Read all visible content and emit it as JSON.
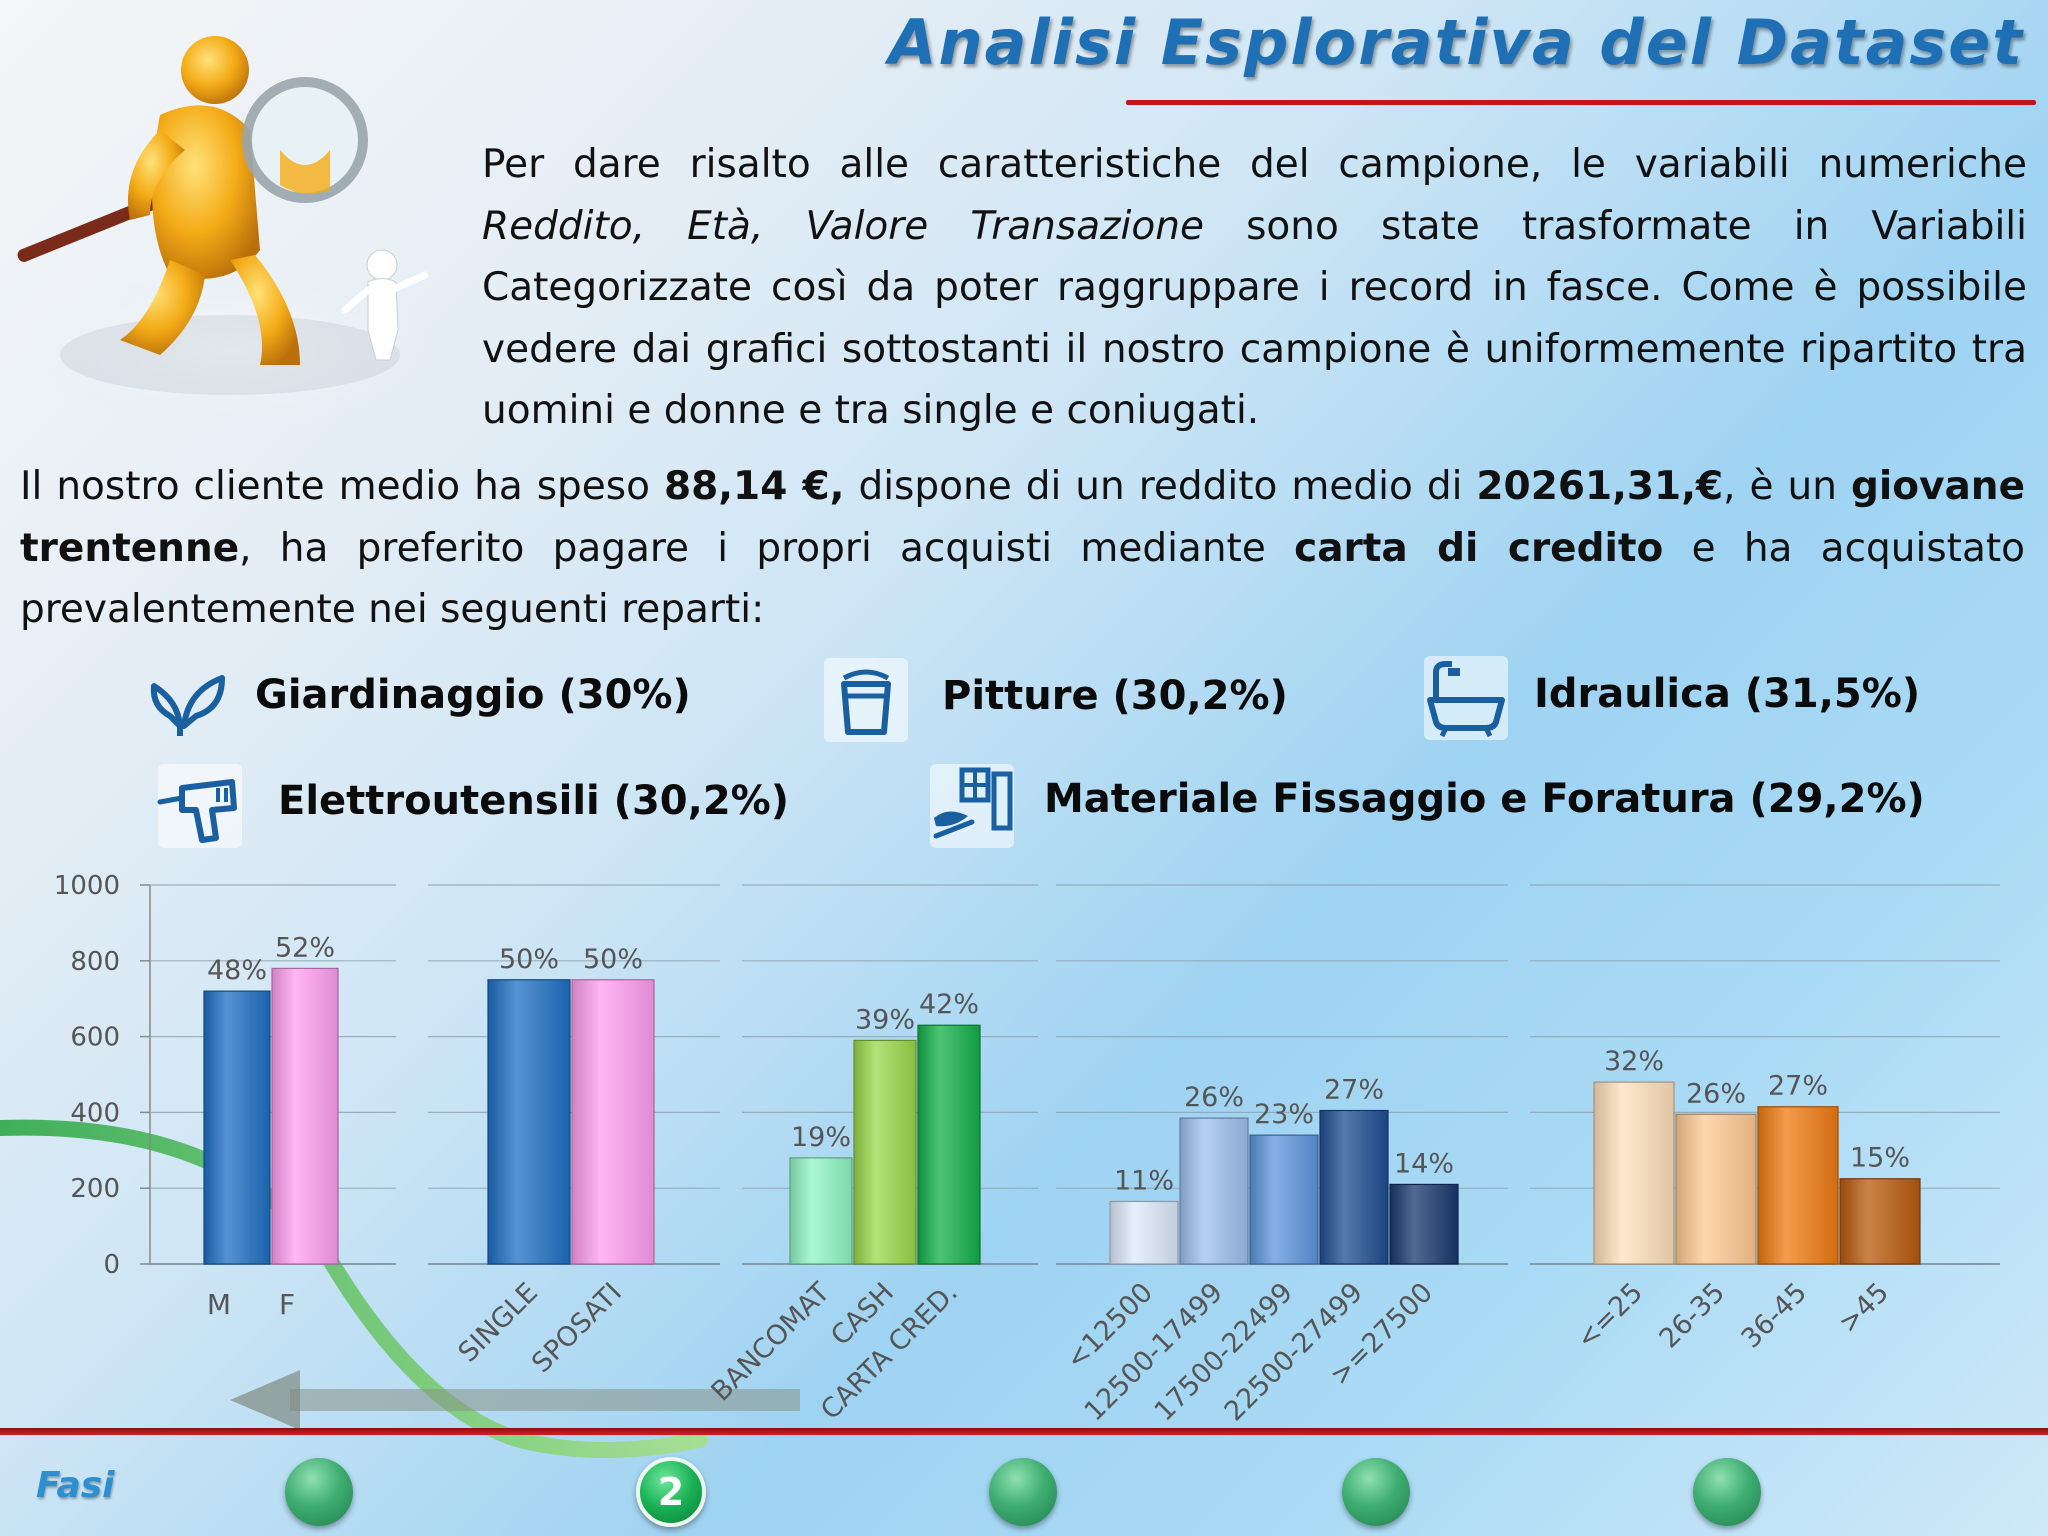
{
  "title": "Analisi Esplorativa del Dataset",
  "intro": {
    "part1": "Per dare risalto alle caratteristiche del campione, le variabili numeriche ",
    "vars": "Reddito, Età, Valore Transazione",
    "part2": " sono state trasformate in Variabili Categorizzate così da poter raggruppare i record in fasce. Come è possibile vedere dai  grafici sottostanti  il nostro campione è uniformemente ripartito tra uomini e donne e tra single e coniugati."
  },
  "summary": {
    "t1": "Il nostro cliente medio ha speso ",
    "b1": "88,14 €,",
    "t2": " dispone di un reddito medio di ",
    "b2": "20261,31,€",
    "t3": ", è un ",
    "b3": "giovane trentenne",
    "t4": ", ha preferito pagare i propri acquisti mediante ",
    "b4": "carta di credito",
    "t5": "  e ha acquistato prevalentemente nei seguenti reparti:"
  },
  "departments": [
    {
      "label": "Giardinaggio (30%)",
      "icon": "leaf-icon"
    },
    {
      "label": "Pitture (30,2%)",
      "icon": "paint-bucket-icon"
    },
    {
      "label": "Idraulica (31,5%)",
      "icon": "bathtub-icon"
    },
    {
      "label": "Elettroutensili (30,2%)",
      "icon": "drill-icon"
    },
    {
      "label": "Materiale Fissaggio e Foratura (29,2%)",
      "icon": "fixing-material-icon"
    }
  ],
  "footer": {
    "label": "Fasi",
    "active_step": "2"
  },
  "chart_data": [
    {
      "type": "bar",
      "categories": [
        "M",
        "F"
      ],
      "values": [
        720,
        780
      ],
      "data_labels": [
        "48%",
        "52%"
      ],
      "colors": [
        "#1f6fc4",
        "#ff9ef0"
      ],
      "ylim": [
        0,
        1000
      ],
      "yticks": [
        "0",
        "200",
        "400",
        "600",
        "800",
        "1000"
      ]
    },
    {
      "type": "bar",
      "categories": [
        "SINGLE",
        "SPOSATI"
      ],
      "values": [
        750,
        750
      ],
      "data_labels": [
        "50%",
        "50%"
      ],
      "colors": [
        "#1f6fc4",
        "#ff9ef0"
      ],
      "ylim": [
        0,
        1000
      ]
    },
    {
      "type": "bar",
      "categories": [
        "BANCOMAT",
        "CASH",
        "CARTA CRED."
      ],
      "values": [
        280,
        590,
        630
      ],
      "data_labels": [
        "19%",
        "39%",
        "42%"
      ],
      "colors": [
        "#8ff5c4",
        "#9ad84a",
        "#13b04a"
      ],
      "ylim": [
        0,
        1000
      ]
    },
    {
      "type": "bar",
      "categories": [
        "<12500",
        "12500-17499",
        "17500-22499",
        "22500-27499",
        ">=27500"
      ],
      "values": [
        165,
        385,
        340,
        405,
        210
      ],
      "data_labels": [
        "11%",
        "26%",
        "23%",
        "27%",
        "14%"
      ],
      "colors": [
        "#dde9fb",
        "#9dc0ee",
        "#5d95de",
        "#1f4d92",
        "#18386e"
      ],
      "ylim": [
        0,
        1000
      ]
    },
    {
      "type": "bar",
      "categories": [
        "<=25",
        "26-35",
        "36-45",
        ">45"
      ],
      "values": [
        480,
        395,
        415,
        225
      ],
      "data_labels": [
        "32%",
        "26%",
        "27%",
        "15%"
      ],
      "colors": [
        "#ffe0bc",
        "#ffc992",
        "#ef7b12",
        "#b85a0c"
      ],
      "ylim": [
        0,
        1000
      ]
    }
  ]
}
